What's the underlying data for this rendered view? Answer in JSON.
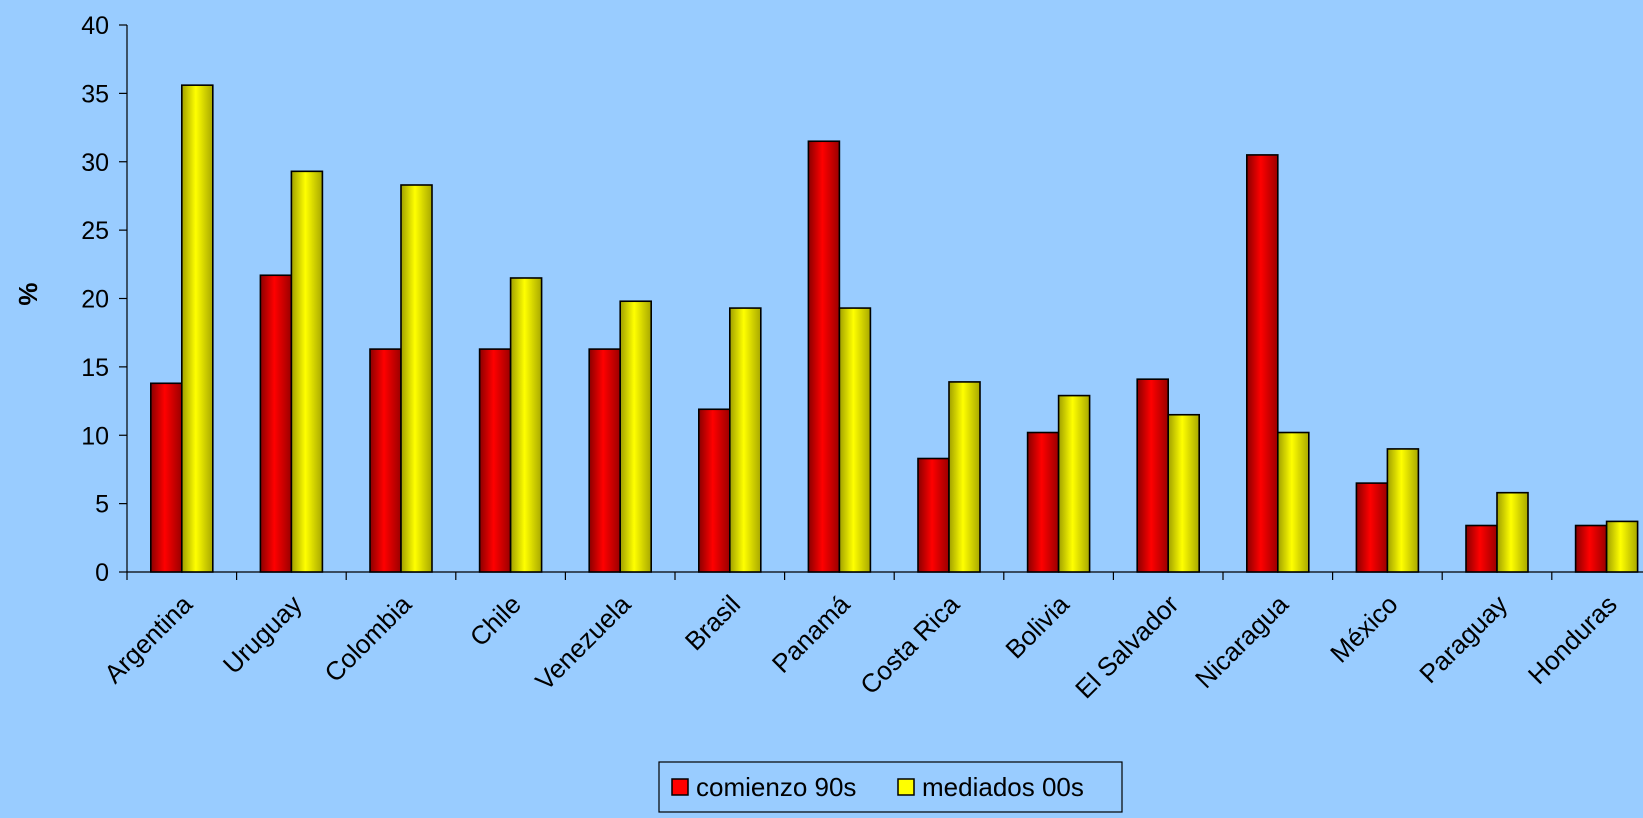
{
  "chart_data": {
    "type": "bar",
    "title": "",
    "xlabel": "",
    "ylabel": "%",
    "ylim": [
      0,
      40
    ],
    "yticks": [
      0,
      5,
      10,
      15,
      20,
      25,
      30,
      35,
      40
    ],
    "grid": false,
    "legend_position": "bottom",
    "categories": [
      "Argentina",
      "Uruguay",
      "Colombia",
      "Chile",
      "Venezuela",
      "Brasil",
      "Panamá",
      "Costa Rica",
      "Bolivia",
      "El Salvador",
      "Nicaragua",
      "México",
      "Paraguay",
      "Honduras"
    ],
    "series": [
      {
        "name": "comienzo 90s",
        "color": "#FF0000",
        "values": [
          13.8,
          21.7,
          16.3,
          16.3,
          16.3,
          11.9,
          31.5,
          8.3,
          10.2,
          14.1,
          30.5,
          6.5,
          3.4,
          3.4
        ]
      },
      {
        "name": "mediados 00s",
        "color": "#FFFF00",
        "values": [
          35.6,
          29.3,
          28.3,
          21.5,
          19.8,
          19.3,
          19.3,
          13.9,
          12.9,
          11.5,
          10.2,
          9.0,
          5.8,
          3.7
        ]
      }
    ]
  }
}
